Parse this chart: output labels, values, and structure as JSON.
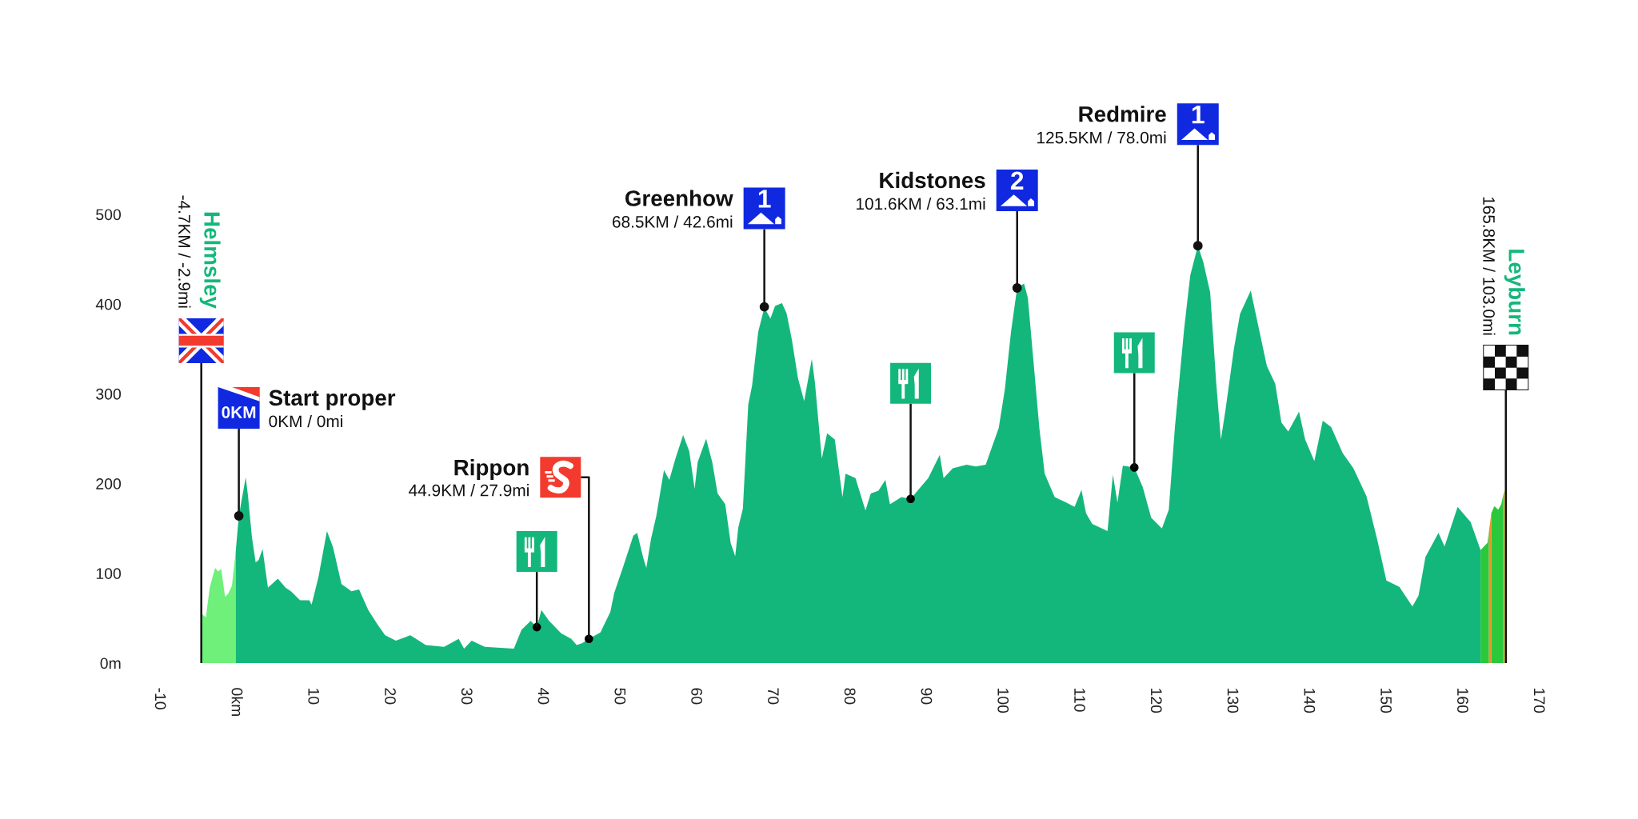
{
  "chart_data": {
    "type": "area",
    "xlim": [
      -10,
      170
    ],
    "xticks": [
      -10,
      {
        "value": 0,
        "label": "0km"
      },
      10,
      20,
      30,
      40,
      50,
      60,
      70,
      80,
      90,
      100,
      110,
      120,
      130,
      140,
      150,
      160,
      170
    ],
    "ylim": [
      0,
      500
    ],
    "yticks": [
      {
        "value": 0,
        "label": "0m"
      },
      100,
      200,
      300,
      400,
      500
    ],
    "series": [
      {
        "color": "#6ef07a",
        "x": [
          -4.5,
          -3.9,
          -3.4,
          -2.7,
          -2.3,
          -1.9,
          -1.4,
          -1.0,
          -0.5,
          0
        ],
        "values": [
          55,
          51,
          84,
          106,
          102,
          105,
          74,
          77,
          86,
          125
        ]
      },
      {
        "color": "#14b77b",
        "x": [
          0,
          0.4,
          1.3,
          1.6,
          2.1,
          2.6,
          3.0,
          3.5,
          4.2,
          5.5,
          6.5,
          7.2,
          8.4,
          9.6,
          9.9,
          10.8,
          11.9,
          12.7,
          13.8,
          15.1,
          16.1,
          17.3,
          18.5,
          19.5,
          20.9,
          22.8,
          24.8,
          27.2,
          29.1,
          29.8,
          30.8,
          32.5,
          36.3,
          37.3,
          38.5,
          39.3,
          39.9,
          40.9,
          42.5,
          43.8,
          44.5,
          45.2,
          46.1,
          47.6,
          48.9,
          49.4,
          50.6,
          51.9,
          52.4,
          53.2,
          53.6,
          54.2,
          54.9,
          55.9,
          56.6,
          57.4,
          58.4,
          59.2,
          59.9,
          60.3,
          61.4,
          62.2,
          62.9,
          63.9,
          64.6,
          65.2,
          65.6,
          66.2,
          66.9,
          67.4,
          68.2,
          69.0,
          69.8,
          70.4,
          71.3,
          71.9,
          72.6,
          73.4,
          74.2,
          75.2,
          75.6,
          76.5,
          77.2,
          78.2,
          79.2,
          79.6,
          80.9,
          82.2,
          82.9,
          83.9,
          84.8,
          85.4,
          86.9,
          88.1,
          89.4,
          90.4,
          91.9,
          92.4,
          93.6,
          95.4,
          96.6,
          97.9,
          98.6,
          99.6,
          100.4,
          101.2,
          102.0,
          102.9,
          103.4,
          104.2,
          104.9,
          105.6,
          106.9,
          108.4,
          109.5,
          110.4,
          111.0,
          111.8,
          113.8,
          114.5,
          115.1,
          115.8,
          117.3,
          118.4,
          119.5,
          120.9,
          121.8,
          122.6,
          123.8,
          124.6,
          125.6,
          126.3,
          127.2,
          128.0,
          128.6,
          129.2,
          130.3,
          131.1,
          132.5,
          133.4,
          134.6,
          135.7,
          136.5,
          137.4,
          138.8,
          139.6,
          140.8,
          141.9,
          143.0,
          144.5,
          145.9,
          147.6,
          149.0,
          150.2,
          151.9,
          153.6,
          154.4,
          155.3,
          157.0,
          157.8,
          159.5,
          161.2,
          162.5
        ],
        "values": [
          125,
          164,
          207,
          186,
          141,
          112,
          115,
          127,
          84,
          94,
          84,
          80,
          70,
          70,
          65,
          96,
          147,
          129,
          88,
          80,
          82,
          59,
          43,
          31,
          25,
          31,
          20,
          18,
          27,
          16,
          25,
          18,
          16,
          37,
          47,
          40,
          59,
          47,
          33,
          27,
          20,
          22,
          27,
          34,
          57,
          78,
          108,
          142,
          145,
          117,
          106,
          138,
          164,
          215,
          204,
          228,
          254,
          236,
          194,
          224,
          250,
          224,
          189,
          177,
          134,
          119,
          151,
          172,
          288,
          309,
          369,
          396,
          384,
          398,
          401,
          390,
          360,
          317,
          292,
          339,
          313,
          228,
          256,
          249,
          185,
          211,
          206,
          170,
          189,
          192,
          204,
          177,
          185,
          183,
          196,
          206,
          232,
          206,
          217,
          221,
          219,
          221,
          238,
          262,
          305,
          369,
          418,
          423,
          407,
          330,
          262,
          211,
          185,
          179,
          174,
          193,
          167,
          155,
          147,
          210,
          179,
          220,
          218,
          196,
          162,
          150,
          171,
          263,
          372,
          432,
          465,
          447,
          413,
          311,
          249,
          282,
          350,
          389,
          415,
          379,
          331,
          311,
          268,
          258,
          280,
          249,
          225,
          270,
          263,
          234,
          217,
          186,
          138,
          92,
          85,
          63,
          75,
          118,
          145,
          130,
          174,
          157,
          126
        ]
      },
      {
        "color": "#2bc83c",
        "x": [
          162.5,
          163.4,
          163.6
        ],
        "values": [
          126,
          134,
          147
        ]
      },
      {
        "color": "#f0902a",
        "x": [
          163.6,
          163.9
        ],
        "values": [
          147,
          167
        ]
      },
      {
        "color": "#2bc83c",
        "x": [
          163.9,
          164.3,
          164.8,
          165.2,
          165.5
        ],
        "values": [
          167,
          175,
          171,
          177,
          189
        ]
      },
      {
        "color": "#c9cf3b",
        "x": [
          165.5,
          165.7
        ],
        "values": [
          189,
          193
        ]
      },
      {
        "type": "scatter",
        "color": "#000000",
        "marker": "circle",
        "x": [
          39.3,
          46.1,
          88.1,
          117.3
        ],
        "values": [
          40,
          27,
          183,
          218
        ]
      }
    ],
    "ref_lines": [
      {
        "axis": "x",
        "value": -4.5,
        "label": "Helmsley\n-4.7KM / -2.9mi",
        "color": "#111111"
      },
      {
        "axis": "x",
        "value": 165.8,
        "label": "Leyburn\n165.8KM / 103.0mi",
        "color": "#111111"
      }
    ],
    "annotations": [
      "Start proper\n0KM / 0mi",
      {
        "text": "0KM",
        "x": 0.4,
        "y": 164
      },
      "Rippon\n44.9KM / 27.9mi",
      "Greenhow\n68.5KM / 42.6mi",
      {
        "text": "1",
        "x": 69.0,
        "y": 397
      },
      "Kidstones\n101.6KM / 63.1mi",
      {
        "text": "2",
        "x": 102.0,
        "y": 418
      },
      "Redmire\n125.5KM / 78.0mi",
      {
        "text": "1",
        "x": 125.6,
        "y": 465
      }
    ]
  }
}
